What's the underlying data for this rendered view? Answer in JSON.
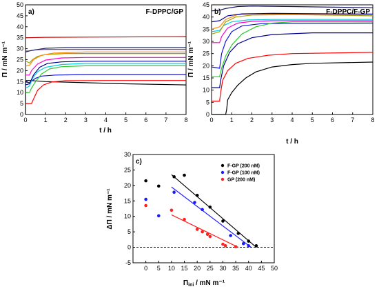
{
  "chart_data": [
    {
      "panel": "a)",
      "title": "F-DPPC/GP",
      "type": "line",
      "xlabel": "t / h",
      "ylabel": "Π / mN m⁻¹",
      "xlim": [
        0,
        8
      ],
      "ylim": [
        0,
        50
      ],
      "xticks": [
        "0",
        "1",
        "2",
        "3",
        "4",
        "5",
        "6",
        "7",
        "8"
      ],
      "yticks": [
        "0",
        "5",
        "10",
        "15",
        "20",
        "25",
        "30",
        "35",
        "40",
        "45",
        "50"
      ],
      "series": [
        {
          "color": "#000000",
          "values": [
            [
              0,
              0
            ],
            [
              0,
              15
            ],
            [
              0.05,
              15.5
            ],
            [
              0.2,
              15.5
            ],
            [
              1,
              15
            ],
            [
              3,
              14.5
            ],
            [
              5,
              14
            ],
            [
              8,
              13.5
            ]
          ]
        },
        {
          "color": "#ff0000",
          "values": [
            [
              0,
              5
            ],
            [
              0.3,
              5
            ],
            [
              0.4,
              7
            ],
            [
              0.6,
              11
            ],
            [
              0.9,
              13.5
            ],
            [
              1.3,
              14.8
            ],
            [
              2,
              15.4
            ],
            [
              4,
              15.5
            ],
            [
              8,
              15.5
            ]
          ]
        },
        {
          "color": "#1010e0",
          "values": [
            [
              0,
              14.8
            ],
            [
              0.2,
              14.5
            ],
            [
              0.35,
              15.5
            ],
            [
              0.5,
              16.5
            ],
            [
              0.8,
              17.5
            ],
            [
              1.5,
              18
            ],
            [
              3,
              18.2
            ],
            [
              8,
              18.2
            ]
          ]
        },
        {
          "color": "#22cc22",
          "values": [
            [
              0,
              10
            ],
            [
              0.2,
              10
            ],
            [
              0.3,
              12
            ],
            [
              0.5,
              15
            ],
            [
              0.8,
              18.5
            ],
            [
              1.2,
              20.8
            ],
            [
              1.8,
              21.8
            ],
            [
              3,
              22.2
            ],
            [
              8,
              22.2
            ]
          ]
        },
        {
          "color": "#00d0e0",
          "values": [
            [
              0,
              12
            ],
            [
              0.2,
              13
            ],
            [
              0.35,
              16.5
            ],
            [
              0.6,
              19.5
            ],
            [
              1,
              21.5
            ],
            [
              1.8,
              22.8
            ],
            [
              3,
              23.3
            ],
            [
              8,
              23.3
            ]
          ]
        },
        {
          "color": "#000090",
          "values": [
            [
              0,
              13.5
            ],
            [
              0.2,
              14
            ],
            [
              0.4,
              18
            ],
            [
              0.7,
              21.5
            ],
            [
              1.1,
              23.3
            ],
            [
              1.8,
              24
            ],
            [
              3,
              24.3
            ],
            [
              8,
              24.3
            ]
          ]
        },
        {
          "color": "#ff00cc",
          "values": [
            [
              0,
              18
            ],
            [
              0.2,
              18
            ],
            [
              0.3,
              20
            ],
            [
              0.6,
              23
            ],
            [
              1,
              24.8
            ],
            [
              1.8,
              25.8
            ],
            [
              3,
              26
            ],
            [
              8,
              26
            ]
          ]
        },
        {
          "color": "#a0a000",
          "values": [
            [
              0,
              24.5
            ],
            [
              0.2,
              23.5
            ],
            [
              0.35,
              25
            ],
            [
              0.6,
              26.5
            ],
            [
              1,
              27.3
            ],
            [
              2,
              27.8
            ],
            [
              8,
              27.8
            ]
          ]
        },
        {
          "color": "#ff8800",
          "values": [
            [
              0,
              22
            ],
            [
              0.2,
              22.5
            ],
            [
              0.4,
              25
            ],
            [
              0.8,
              27
            ],
            [
              1.4,
              28
            ],
            [
              3,
              28.5
            ],
            [
              8,
              28.5
            ]
          ]
        },
        {
          "color": "#8040c0",
          "values": [
            [
              0,
              29
            ],
            [
              0.2,
              29
            ],
            [
              0.5,
              29.5
            ],
            [
              1,
              29.7
            ],
            [
              8,
              29.7
            ]
          ]
        },
        {
          "color": "#202060",
          "values": [
            [
              0,
              28.5
            ],
            [
              0.3,
              29.2
            ],
            [
              1,
              30.2
            ],
            [
              2,
              30.5
            ],
            [
              8,
              30.5
            ]
          ]
        },
        {
          "color": "#cc0000",
          "values": [
            [
              0,
              35
            ],
            [
              1,
              35.2
            ],
            [
              4,
              35.3
            ],
            [
              8,
              35.5
            ]
          ]
        }
      ]
    },
    {
      "panel": "b)",
      "title": "F-DPPC/F-GP",
      "type": "line",
      "xlabel": "t / h",
      "ylabel": "Π / mN m⁻¹",
      "xlim": [
        0,
        8
      ],
      "ylim": [
        0,
        45
      ],
      "xticks": [
        "0",
        "1",
        "2",
        "3",
        "4",
        "5",
        "6",
        "7",
        "8"
      ],
      "yticks": [
        "0",
        "5",
        "10",
        "15",
        "20",
        "25",
        "30",
        "35",
        "40",
        "45"
      ],
      "series": [
        {
          "color": "#000000",
          "values": [
            [
              0,
              0
            ],
            [
              0.7,
              0
            ],
            [
              0.75,
              2
            ],
            [
              0.8,
              6
            ],
            [
              1,
              9
            ],
            [
              1.3,
              12
            ],
            [
              1.7,
              15
            ],
            [
              2.2,
              17.5
            ],
            [
              3,
              19.5
            ],
            [
              4,
              20.5
            ],
            [
              5,
              21
            ],
            [
              8,
              21.5
            ]
          ]
        },
        {
          "color": "#ff0000",
          "values": [
            [
              0,
              5.5
            ],
            [
              0.4,
              5.5
            ],
            [
              0.45,
              9
            ],
            [
              0.55,
              14
            ],
            [
              0.8,
              18
            ],
            [
              1.2,
              21
            ],
            [
              1.8,
              23
            ],
            [
              2.8,
              24.3
            ],
            [
              4,
              25
            ],
            [
              8,
              25.5
            ]
          ]
        },
        {
          "color": "#000090",
          "values": [
            [
              0,
              11
            ],
            [
              0.4,
              11
            ],
            [
              0.45,
              14
            ],
            [
              0.6,
              20
            ],
            [
              0.9,
              25.5
            ],
            [
              1.3,
              29
            ],
            [
              2,
              31.5
            ],
            [
              3,
              32.8
            ],
            [
              5,
              33.5
            ],
            [
              8,
              33.5
            ]
          ]
        },
        {
          "color": "#1010e0",
          "values": [
            [
              0,
              19.5
            ],
            [
              0.4,
              19
            ],
            [
              0.5,
              25
            ],
            [
              0.7,
              30
            ],
            [
              1,
              34
            ],
            [
              1.5,
              36.3
            ],
            [
              2.5,
              37.3
            ],
            [
              8,
              37.5
            ]
          ]
        },
        {
          "color": "#22cc22",
          "values": [
            [
              0,
              15.5
            ],
            [
              0.4,
              15.5
            ],
            [
              0.5,
              19
            ],
            [
              0.7,
              24
            ],
            [
              1,
              28.5
            ],
            [
              1.5,
              33
            ],
            [
              2.2,
              36
            ],
            [
              3,
              37.5
            ],
            [
              4,
              38
            ],
            [
              8,
              38
            ]
          ]
        },
        {
          "color": "#ff00cc",
          "values": [
            [
              0,
              29.5
            ],
            [
              0.4,
              29.5
            ],
            [
              0.5,
              32
            ],
            [
              0.8,
              35.5
            ],
            [
              1.3,
              37.5
            ],
            [
              2,
              38.2
            ],
            [
              3,
              38.5
            ],
            [
              8,
              38.5
            ]
          ]
        },
        {
          "color": "#00d0e0",
          "values": [
            [
              0,
              34
            ],
            [
              0.4,
              34.5
            ],
            [
              0.6,
              36.5
            ],
            [
              1,
              38
            ],
            [
              1.8,
              38.8
            ],
            [
              3,
              39
            ],
            [
              8,
              39
            ]
          ]
        },
        {
          "color": "#a0a000",
          "values": [
            [
              0,
              33
            ],
            [
              0.4,
              34
            ],
            [
              0.7,
              38
            ],
            [
              1.2,
              40
            ],
            [
              2,
              40.8
            ],
            [
              4,
              41
            ],
            [
              8,
              40.5
            ]
          ]
        },
        {
          "color": "#ff8800",
          "values": [
            [
              0,
              35
            ],
            [
              0.4,
              36
            ],
            [
              0.7,
              39
            ],
            [
              1.3,
              41
            ],
            [
              2,
              41.3
            ],
            [
              4,
              41.2
            ],
            [
              8,
              41
            ]
          ]
        },
        {
          "color": "#000090",
          "values": [
            [
              0,
              38
            ],
            [
              0.4,
              38.5
            ],
            [
              0.8,
              40.5
            ],
            [
              1.5,
              41.3
            ],
            [
              3,
              41.5
            ],
            [
              8,
              41.2
            ]
          ]
        },
        {
          "color": "#101060",
          "values": [
            [
              0,
              42.5
            ],
            [
              0.4,
              42.8
            ],
            [
              0.7,
              43.5
            ],
            [
              1.3,
              44.3
            ],
            [
              2,
              44.5
            ],
            [
              4,
              44.3
            ],
            [
              8,
              43.8
            ]
          ]
        }
      ]
    },
    {
      "panel": "c)",
      "type": "scatter",
      "xlabel": "Πini / mN m⁻¹",
      "xlabel_main": "Π",
      "xlabel_sub": "ini",
      "xlabel_rest": " / mN m⁻¹",
      "ylabel": "ΔΠ / mN m⁻¹",
      "xlim": [
        -5,
        50
      ],
      "ylim": [
        -5,
        30
      ],
      "xticks": [
        "0",
        "5",
        "10",
        "15",
        "20",
        "25",
        "30",
        "35",
        "40",
        "45",
        "50"
      ],
      "yticks": [
        "-5",
        "0",
        "5",
        "10",
        "15",
        "20",
        "25",
        "30"
      ],
      "reference_line_y": 0,
      "legend_position": "top-right",
      "series": [
        {
          "name": "F-GP (200 nM)",
          "color": "#000000",
          "points": [
            [
              0,
              21.5
            ],
            [
              5,
              19.8
            ],
            [
              11,
              22.8
            ],
            [
              15,
              23.3
            ],
            [
              20,
              16.8
            ],
            [
              25,
              13
            ],
            [
              30,
              8.5
            ],
            [
              36,
              4.5
            ],
            [
              40,
              2
            ],
            [
              43,
              0.5
            ]
          ],
          "fit": [
            [
              10,
              23.5
            ],
            [
              43,
              0
            ]
          ]
        },
        {
          "name": "F-GP (100 nM)",
          "color": "#1a1aff",
          "points": [
            [
              0,
              15.5
            ],
            [
              5,
              10.2
            ],
            [
              11,
              17.8
            ],
            [
              19,
              14.5
            ],
            [
              22,
              12.2
            ],
            [
              33,
              3.8
            ],
            [
              38,
              1.2
            ],
            [
              40,
              0.5
            ]
          ],
          "fit": [
            [
              10,
              19.5
            ],
            [
              41,
              0
            ]
          ]
        },
        {
          "name": "GP (200 nM)",
          "color": "#ff2020",
          "points": [
            [
              0,
              13.5
            ],
            [
              10,
              12
            ],
            [
              15,
              9
            ],
            [
              20,
              5.8
            ],
            [
              22,
              5
            ],
            [
              24,
              4.2
            ],
            [
              25,
              3.5
            ],
            [
              30,
              1
            ],
            [
              31,
              0.5
            ],
            [
              35,
              0.2
            ]
          ],
          "fit": [
            [
              10,
              10.5
            ],
            [
              36,
              0
            ]
          ]
        }
      ]
    }
  ]
}
